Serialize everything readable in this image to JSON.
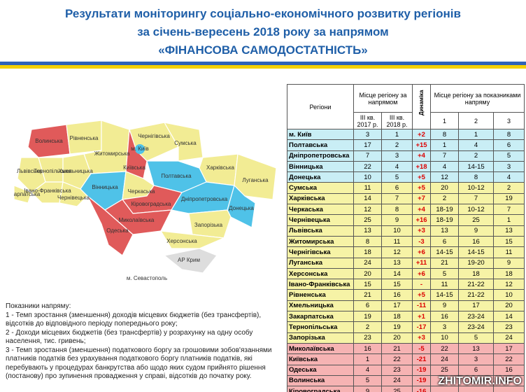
{
  "header": {
    "title_lines": [
      "Результати моніторингу соціально-економічного розвитку регіонів",
      "за січень-вересень 2018 року за напрямом",
      "«ФІНАНСОВА САМОДОСТАТНІСТЬ»"
    ]
  },
  "map": {
    "labels": [
      "Волинська",
      "Рівненська",
      "Житомирська",
      "Чернігівська",
      "Сумська",
      "Київська",
      "м. Київ",
      "Харківська",
      "Полтавська",
      "Луганська",
      "Львівська",
      "Тернопільська",
      "Хмельницька",
      "Вінницька",
      "Черкаська",
      "Закарпатська",
      "Івано-Франківська",
      "Чернівецька",
      "Кіровоградська",
      "Дніпропетровська",
      "Донецька",
      "Миколаївська",
      "Запорізька",
      "Одеська",
      "Херсонська",
      "АР Крим",
      "м. Севастополь"
    ]
  },
  "notes": {
    "heading": "Показники напряму:",
    "items": [
      "1 - Темп зростання (зменшення) доходів місцевих бюджетів (без трансфертів), відсотків до відповідного періоду попереднього року;",
      "2 - Доходи місцевих бюджетів (без трансфертів) у розрахунку на одну особу населення, тис. гривень;",
      "3 - Темп зростання (зменшення) податкового боргу за грошовими зобов'язаннями платників податків без урахування податкового боргу платників податків, які перебувають у процедурах банкрутства або щодо яких судом прийнято рішення (постанову) про зупинення провадження у справі, відсотків до початку року."
    ]
  },
  "table": {
    "header": {
      "regions": "Регіони",
      "rank": "Місце регіону за напрямом",
      "q2017": "III кв. 2017 р.",
      "q2018": "III кв. 2018 р.",
      "dynamics": "Динаміка",
      "indicators": "Місце регіону за показниками напряму",
      "ind": [
        "1",
        "2",
        "3"
      ]
    },
    "rows": [
      [
        "м. Київ",
        "3",
        "1",
        "+2",
        "8",
        "1",
        "8"
      ],
      [
        "Полтавська",
        "17",
        "2",
        "+15",
        "1",
        "4",
        "6"
      ],
      [
        "Дніпропетровська",
        "7",
        "3",
        "+4",
        "7",
        "2",
        "5"
      ],
      [
        "Вінницька",
        "22",
        "4",
        "+18",
        "4",
        "14-15",
        "3"
      ],
      [
        "Донецька",
        "10",
        "5",
        "+5",
        "12",
        "8",
        "4"
      ],
      [
        "Сумська",
        "11",
        "6",
        "+5",
        "20",
        "10-12",
        "2"
      ],
      [
        "Харківська",
        "14",
        "7",
        "+7",
        "2",
        "7",
        "19"
      ],
      [
        "Черкаська",
        "12",
        "8",
        "+4",
        "18-19",
        "10-12",
        "7"
      ],
      [
        "Чернівецька",
        "25",
        "9",
        "+16",
        "18-19",
        "25",
        "1"
      ],
      [
        "Львівська",
        "13",
        "10",
        "+3",
        "13",
        "9",
        "13"
      ],
      [
        "Житомирська",
        "8",
        "11",
        "-3",
        "6",
        "16",
        "15"
      ],
      [
        "Чернігівська",
        "18",
        "12",
        "+6",
        "14-15",
        "14-15",
        "11"
      ],
      [
        "Луганська",
        "24",
        "13",
        "+11",
        "21",
        "19-20",
        "9"
      ],
      [
        "Херсонська",
        "20",
        "14",
        "+6",
        "5",
        "18",
        "18"
      ],
      [
        "Івано-Франківська",
        "15",
        "15",
        "-",
        "11",
        "21-22",
        "12"
      ],
      [
        "Рівненська",
        "21",
        "16",
        "+5",
        "14-15",
        "21-22",
        "10"
      ],
      [
        "Хмельницька",
        "6",
        "17",
        "-11",
        "9",
        "17",
        "20"
      ],
      [
        "Закарпатська",
        "19",
        "18",
        "+1",
        "16",
        "23-24",
        "14"
      ],
      [
        "Тернопільська",
        "2",
        "19",
        "-17",
        "3",
        "23-24",
        "23"
      ],
      [
        "Запорізька",
        "23",
        "20",
        "+3",
        "10",
        "5",
        "24"
      ],
      [
        "Миколаївська",
        "16",
        "21",
        "-5",
        "22",
        "13",
        "17"
      ],
      [
        "Київська",
        "1",
        "22",
        "-21",
        "24",
        "3",
        "22"
      ],
      [
        "Одеська",
        "4",
        "23",
        "-19",
        "25",
        "6",
        "16"
      ],
      [
        "Волинська",
        "5",
        "24",
        "-19",
        "23",
        "19-20",
        "21"
      ],
      [
        "Кіровоградська",
        "9",
        "25",
        "-16"
      ]
    ]
  },
  "watermark": "ZHITOMIR.INFO"
}
